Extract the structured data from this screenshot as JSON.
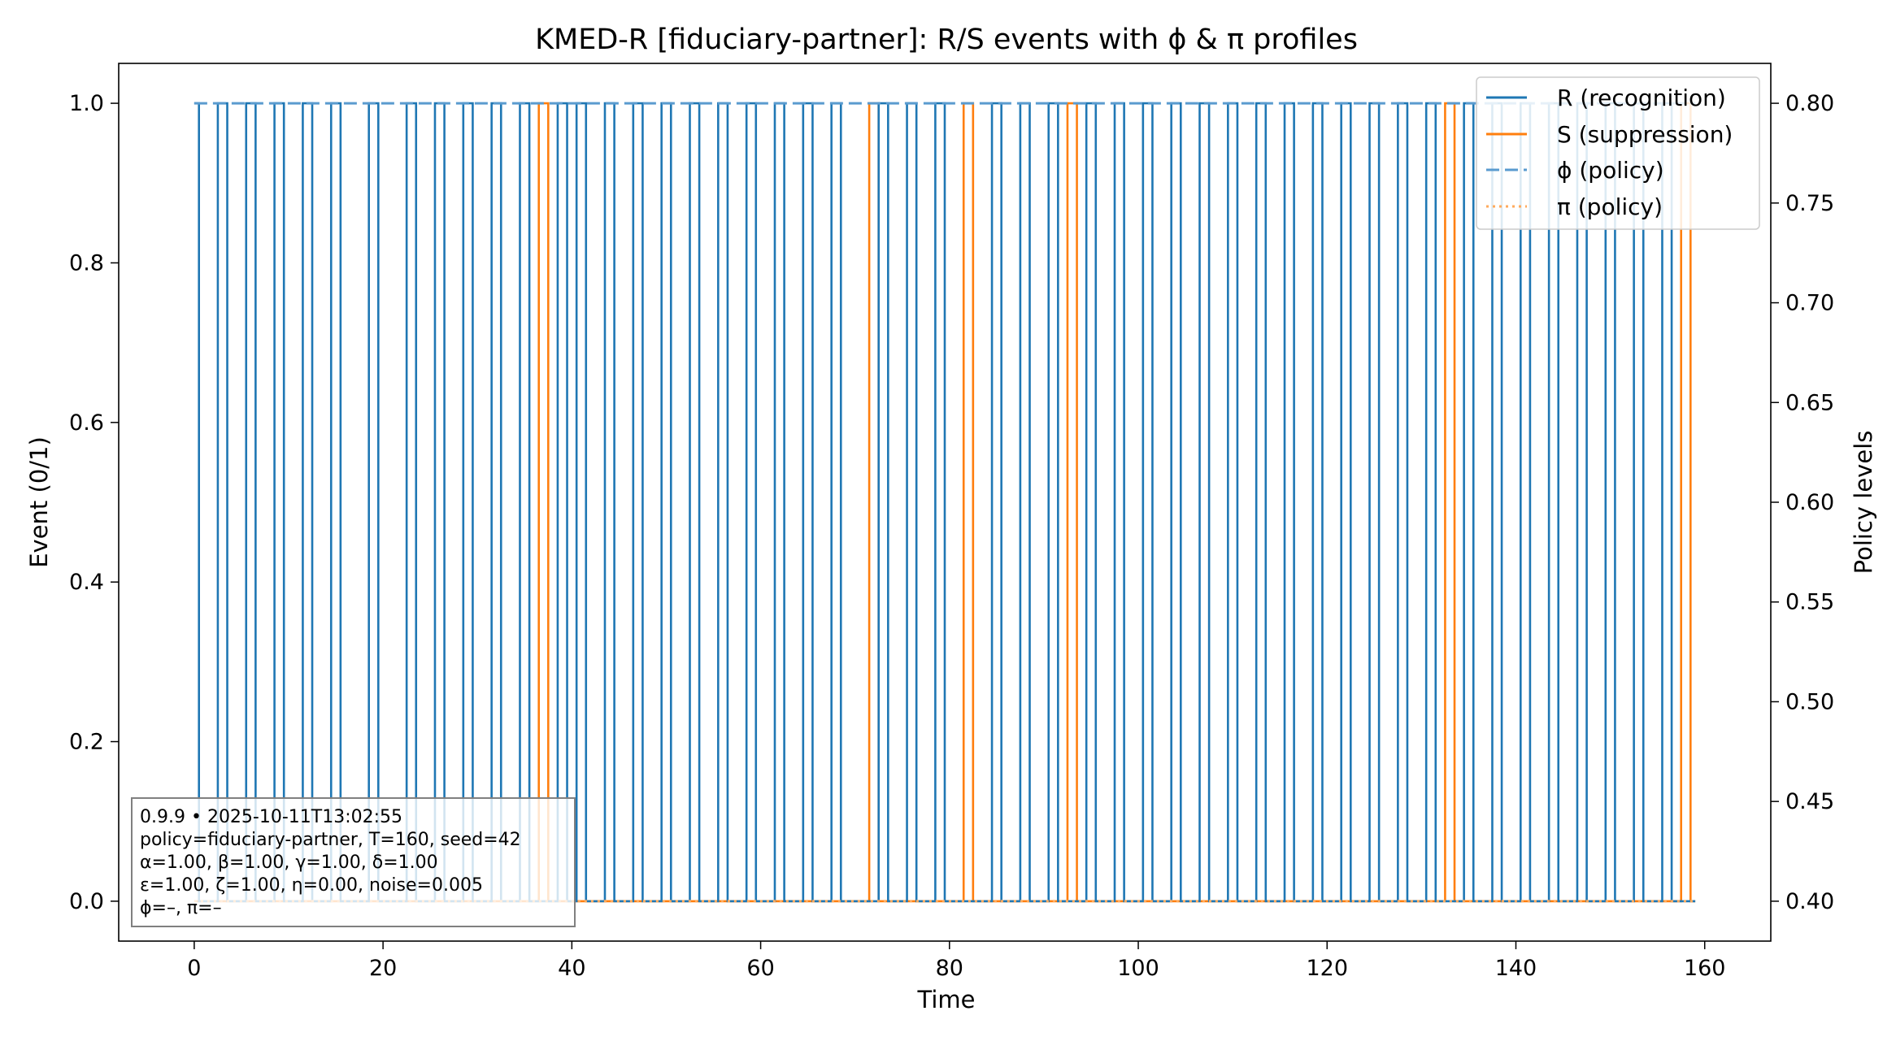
{
  "chart_data": {
    "type": "line",
    "title": "KMED-R [fiduciary-partner]: R/S events with ϕ & π profiles",
    "xlabel": "Time",
    "ylabel": "Event (0/1)",
    "y2label": "Policy levels",
    "xlim": [
      -8,
      167
    ],
    "ylim": [
      -0.05,
      1.05
    ],
    "y2lim": [
      0.38,
      0.82
    ],
    "x_ticks": [
      "0",
      "20",
      "40",
      "60",
      "80",
      "100",
      "120",
      "140",
      "160"
    ],
    "y_ticks": [
      "0.0",
      "0.2",
      "0.4",
      "0.6",
      "0.8",
      "1.0"
    ],
    "y2_ticks": [
      "0.40",
      "0.45",
      "0.50",
      "0.55",
      "0.60",
      "0.65",
      "0.70",
      "0.75",
      "0.80"
    ],
    "grid": false,
    "legend_position": "top-right",
    "colors": {
      "r": "#1f77b4",
      "s": "#ff7f0e",
      "phi": "#5a9bcf",
      "pi": "#ffaa5c"
    },
    "series": [
      {
        "name": "R (recognition)",
        "style": "solid",
        "axis": "left",
        "x_range": [
          0,
          159
        ],
        "events": [
          0,
          3,
          6,
          9,
          12,
          15,
          19,
          23,
          26,
          29,
          32,
          35,
          39,
          41,
          44,
          47,
          50,
          53,
          56,
          59,
          62,
          65,
          68,
          73,
          76,
          79,
          85,
          88,
          91,
          95,
          98,
          101,
          104,
          107,
          110,
          113,
          116,
          119,
          122,
          125,
          128,
          131,
          135,
          138,
          141,
          144,
          147,
          150,
          153,
          156
        ]
      },
      {
        "name": "S (suppression)",
        "style": "solid",
        "axis": "left",
        "x_range": [
          0,
          159
        ],
        "events": [
          37,
          72,
          82,
          93,
          133,
          158
        ]
      },
      {
        "name": "ϕ (policy)",
        "style": "dashed",
        "axis": "right",
        "x": [
          0,
          159
        ],
        "y": [
          0.8,
          0.8
        ]
      },
      {
        "name": "π (policy)",
        "style": "dotted",
        "axis": "right",
        "x": [
          0,
          159
        ],
        "y": [
          0.4,
          0.4
        ]
      }
    ],
    "annotation": [
      "0.9.9  •  2025-10-11T13:02:55",
      "policy=fiduciary-partner, T=160, seed=42",
      "α=1.00, β=1.00, γ=1.00, δ=1.00",
      "ε=1.00, ζ=1.00, η=0.00, noise=0.005",
      "ϕ=–, π=–"
    ]
  }
}
